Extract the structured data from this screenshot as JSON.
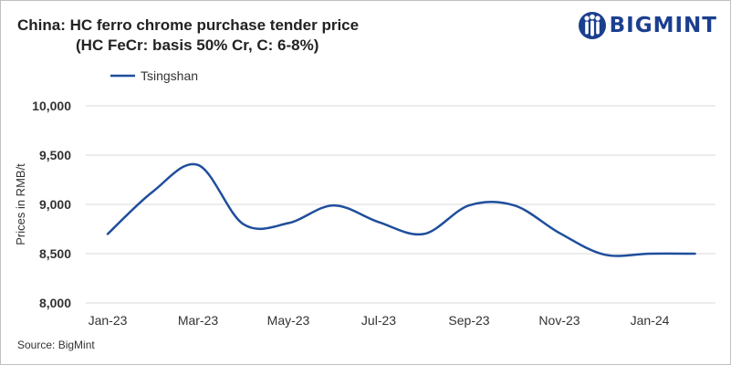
{
  "header": {
    "title_line1": "China: HC ferro chrome purchase tender price",
    "title_line2": "(HC FeCr: basis 50% Cr, C: 6-8%)"
  },
  "logo": {
    "text": "BIGMINT",
    "icon": "bigmint-people-icon",
    "color": "#1b3f8f"
  },
  "footer": {
    "source": "Source: BigMint"
  },
  "chart_data": {
    "type": "line",
    "title": "China: HC ferro chrome purchase tender price (HC FeCr: basis 50% Cr, C: 6-8%)",
    "ylabel": "Prices in RMB/t",
    "xlabel": "",
    "ylim": [
      8000,
      10000
    ],
    "yticks": [
      8000,
      8500,
      9000,
      9500,
      10000
    ],
    "ytick_labels": [
      "8,000",
      "8,500",
      "9,000",
      "9,500",
      "10,000"
    ],
    "xtick_labels": [
      "Jan-23",
      "Mar-23",
      "May-23",
      "Jul-23",
      "Sep-23",
      "Nov-23",
      "Jan-24"
    ],
    "x": [
      "Jan-23",
      "Feb-23",
      "Mar-23",
      "Apr-23",
      "May-23",
      "Jun-23",
      "Jul-23",
      "Aug-23",
      "Sep-23",
      "Oct-23",
      "Nov-23",
      "Dec-23",
      "Jan-24",
      "Feb-24"
    ],
    "grid": "horizontal",
    "legend_position": "top-left",
    "series": [
      {
        "name": "Tsingshan",
        "color": "#1f4e9c",
        "values": [
          8700,
          9130,
          9400,
          8800,
          8810,
          8990,
          8820,
          8700,
          8990,
          8990,
          8710,
          8490,
          8500,
          8500
        ]
      }
    ]
  }
}
